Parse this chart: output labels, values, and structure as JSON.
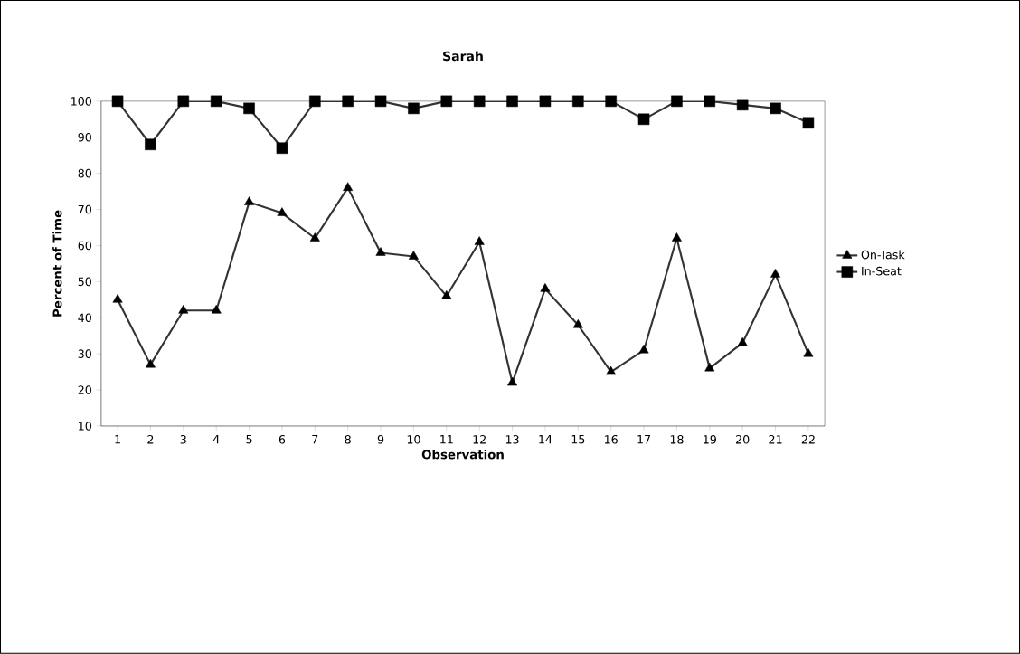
{
  "chart_data": {
    "type": "line",
    "title": "Sarah",
    "xlabel": "Observation",
    "ylabel": "Percent of Time",
    "categories": [
      "1",
      "2",
      "3",
      "4",
      "5",
      "6",
      "7",
      "8",
      "9",
      "10",
      "11",
      "12",
      "13",
      "14",
      "15",
      "16",
      "17",
      "18",
      "19",
      "20",
      "21",
      "22"
    ],
    "series": [
      {
        "name": "On-Task",
        "color": "#000000",
        "marker": "triangle",
        "values": [
          45,
          27,
          42,
          42,
          72,
          69,
          62,
          76,
          58,
          57,
          46,
          61,
          22,
          48,
          38,
          25,
          31,
          62,
          26,
          33,
          52,
          30
        ]
      },
      {
        "name": "In-Seat",
        "color": "#000000",
        "marker": "square",
        "values": [
          100,
          88,
          100,
          100,
          98,
          87,
          100,
          100,
          100,
          98,
          100,
          100,
          100,
          100,
          100,
          100,
          95,
          100,
          100,
          99,
          98,
          94
        ]
      }
    ],
    "ylim": [
      10,
      100
    ],
    "yticks": [
      10,
      20,
      30,
      40,
      50,
      60,
      70,
      80,
      90,
      100
    ],
    "grid": false,
    "legend": "right",
    "line_style": "solid"
  }
}
